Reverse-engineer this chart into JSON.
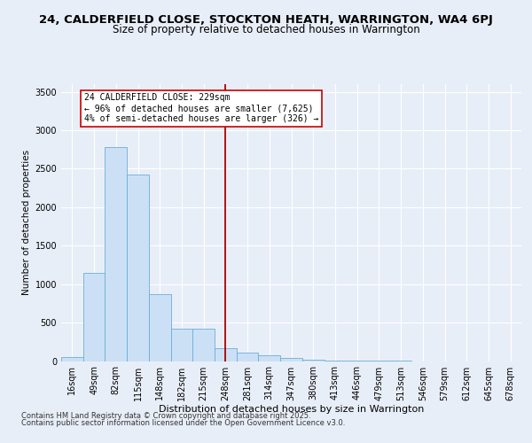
{
  "title_line1": "24, CALDERFIELD CLOSE, STOCKTON HEATH, WARRINGTON, WA4 6PJ",
  "title_line2": "Size of property relative to detached houses in Warrington",
  "xlabel": "Distribution of detached houses by size in Warrington",
  "ylabel": "Number of detached properties",
  "categories": [
    "16sqm",
    "49sqm",
    "82sqm",
    "115sqm",
    "148sqm",
    "182sqm",
    "215sqm",
    "248sqm",
    "281sqm",
    "314sqm",
    "347sqm",
    "380sqm",
    "413sqm",
    "446sqm",
    "479sqm",
    "513sqm",
    "546sqm",
    "579sqm",
    "612sqm",
    "645sqm",
    "678sqm"
  ],
  "values": [
    55,
    1150,
    2780,
    2420,
    870,
    420,
    420,
    170,
    115,
    70,
    45,
    20,
    10,
    5,
    2,
    1,
    0,
    0,
    0,
    0,
    0
  ],
  "bar_color": "#cce0f5",
  "bar_edge_color": "#6aaed6",
  "vline_x": 7.0,
  "vline_color": "#aa0000",
  "annotation_text": "24 CALDERFIELD CLOSE: 229sqm\n← 96% of detached houses are smaller (7,625)\n4% of semi-detached houses are larger (326) →",
  "annotation_box_color": "#cc0000",
  "ylim": [
    0,
    3600
  ],
  "yticks": [
    0,
    500,
    1000,
    1500,
    2000,
    2500,
    3000,
    3500
  ],
  "footer_line1": "Contains HM Land Registry data © Crown copyright and database right 2025.",
  "footer_line2": "Contains public sector information licensed under the Open Government Licence v3.0.",
  "bg_color": "#e8eef8",
  "plot_bg_color": "#e8eef8",
  "title_fontsize": 9.5,
  "subtitle_fontsize": 8.5,
  "axis_label_fontsize": 7.5,
  "tick_fontsize": 7,
  "annotation_fontsize": 7,
  "footer_fontsize": 6
}
